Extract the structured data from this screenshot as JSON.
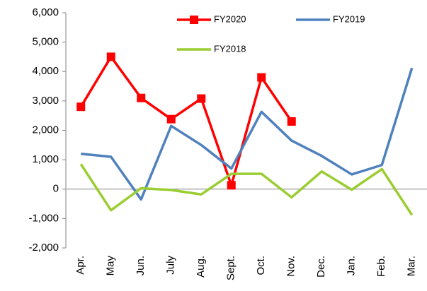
{
  "chart_data": {
    "type": "line",
    "categories": [
      "Apr.",
      "May",
      "Jun.",
      "July",
      "Aug.",
      "Sept.",
      "Oct.",
      "Nov.",
      "Dec.",
      "Jan.",
      "Feb.",
      "Mar."
    ],
    "series": [
      {
        "name": "FY2020",
        "color": "#ff0000",
        "marker": "square",
        "values": [
          2800,
          4500,
          3100,
          2380,
          3080,
          130,
          3800,
          2300,
          null,
          null,
          null,
          null
        ]
      },
      {
        "name": "FY2019",
        "color": "#4f81bd",
        "values": [
          1200,
          1100,
          -350,
          2150,
          1500,
          700,
          2630,
          1650,
          1130,
          500,
          820,
          4120
        ]
      },
      {
        "name": "FY2018",
        "color": "#9acd32",
        "values": [
          850,
          -720,
          30,
          -30,
          -180,
          520,
          520,
          -280,
          600,
          -20,
          680,
          -880
        ]
      }
    ],
    "ylim": [
      -2000,
      6000
    ],
    "yticks": [
      {
        "value": -2000,
        "label": "-2,000"
      },
      {
        "value": -1000,
        "label": "-1,000"
      },
      0,
      {
        "value": 1000,
        "label": "1,000"
      },
      {
        "value": 2000,
        "label": "2,000"
      },
      {
        "value": 3000,
        "label": "3,000"
      },
      {
        "value": 4000,
        "label": "4,000"
      },
      {
        "value": 5000,
        "label": "5,000"
      },
      {
        "value": 6000,
        "label": "6,000"
      }
    ],
    "grid": false,
    "legend": "top"
  }
}
